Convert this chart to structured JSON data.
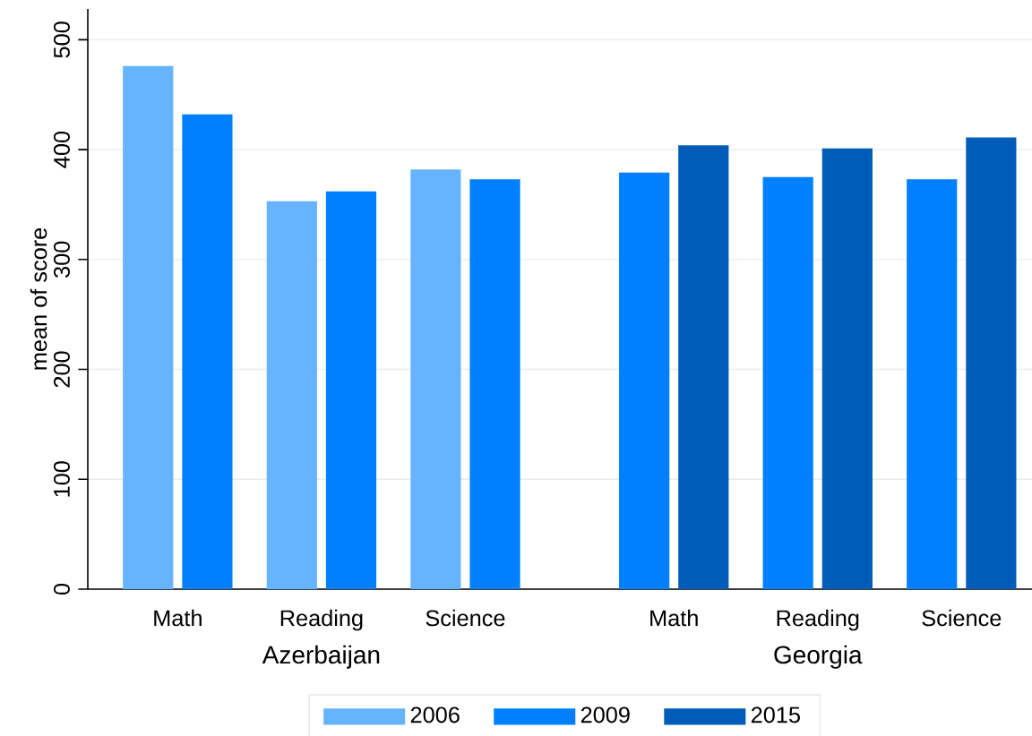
{
  "chart_data": {
    "type": "bar",
    "ylabel": "mean of score",
    "categories": [
      "Math",
      "Reading",
      "Science",
      "Math",
      "Reading",
      "Science"
    ],
    "annotations": [
      "Azerbaijan",
      "Georgia"
    ],
    "series": [
      {
        "name": "2006",
        "color": "#66b3ff",
        "values": [
          476,
          353,
          382,
          null,
          null,
          null
        ]
      },
      {
        "name": "2009",
        "color": "#0080ff",
        "values": [
          432,
          362,
          373,
          379,
          375,
          373
        ]
      },
      {
        "name": "2015",
        "color": "#005cb8",
        "values": [
          null,
          null,
          null,
          404,
          401,
          411
        ]
      }
    ],
    "ylim": [
      0,
      528
    ],
    "yticks": [
      0,
      100,
      200,
      300,
      400,
      500
    ],
    "grid": "y",
    "legend": "bottom"
  }
}
